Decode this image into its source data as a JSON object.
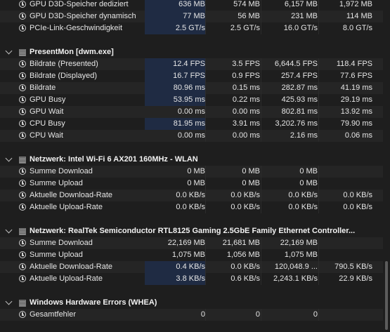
{
  "rows": [
    {
      "type": "item",
      "name": "GPU D3D-Speicher dediziert",
      "c1": "636 MB",
      "c2": "574 MB",
      "c3": "6,157 MB",
      "c4": "1,972 MB",
      "hi": true
    },
    {
      "type": "item",
      "name": "GPU D3D-Speicher dynamisch",
      "c1": "77 MB",
      "c2": "56 MB",
      "c3": "231 MB",
      "c4": "114 MB",
      "hi": true
    },
    {
      "type": "item",
      "name": "PCIe-Link-Geschwindigkeit",
      "c1": "2.5 GT/s",
      "c2": "2.5 GT/s",
      "c3": "16.0 GT/s",
      "c4": "8.0 GT/s",
      "hi": true
    },
    {
      "type": "blank"
    },
    {
      "type": "header",
      "name": "PresentMon [dwm.exe]"
    },
    {
      "type": "item",
      "name": "Bildrate (Presented)",
      "c1": "12.4 FPS",
      "c2": "3.5 FPS",
      "c3": "6,644.5 FPS",
      "c4": "118.4 FPS",
      "hi": true
    },
    {
      "type": "item",
      "name": "Bildrate (Displayed)",
      "c1": "16.7 FPS",
      "c2": "0.9 FPS",
      "c3": "257.4 FPS",
      "c4": "77.6 FPS",
      "hi": true
    },
    {
      "type": "item",
      "name": "Bildrate",
      "c1": "80.96 ms",
      "c2": "0.15 ms",
      "c3": "282.87 ms",
      "c4": "41.19 ms",
      "hi": true
    },
    {
      "type": "item",
      "name": "GPU Busy",
      "c1": "53.95 ms",
      "c2": "0.22 ms",
      "c3": "425.93 ms",
      "c4": "29.19 ms",
      "hi": true
    },
    {
      "type": "item",
      "name": "GPU Wait",
      "c1": "0.00 ms",
      "c2": "0.00 ms",
      "c3": "802.81 ms",
      "c4": "13.92 ms",
      "hi": false
    },
    {
      "type": "item",
      "name": "CPU Busy",
      "c1": "81.95 ms",
      "c2": "3.91 ms",
      "c3": "3,202.76 ms",
      "c4": "79.90 ms",
      "hi": true
    },
    {
      "type": "item",
      "name": "CPU Wait",
      "c1": "0.00 ms",
      "c2": "0.00 ms",
      "c3": "2.16 ms",
      "c4": "0.06 ms",
      "hi": false
    },
    {
      "type": "blank"
    },
    {
      "type": "header",
      "name": "Netzwerk: Intel Wi-Fi 6 AX201 160MHz - WLAN"
    },
    {
      "type": "item",
      "name": "Summe Download",
      "c1": "0 MB",
      "c2": "0 MB",
      "c3": "0 MB",
      "c4": "",
      "hi": false
    },
    {
      "type": "item",
      "name": "Summe Upload",
      "c1": "0 MB",
      "c2": "0 MB",
      "c3": "0 MB",
      "c4": "",
      "hi": false
    },
    {
      "type": "item",
      "name": "Aktuelle Download-Rate",
      "c1": "0.0 KB/s",
      "c2": "0.0 KB/s",
      "c3": "0.0 KB/s",
      "c4": "0.0 KB/s",
      "hi": false
    },
    {
      "type": "item",
      "name": "Aktuelle Upload-Rate",
      "c1": "0.0 KB/s",
      "c2": "0.0 KB/s",
      "c3": "0.0 KB/s",
      "c4": "0.0 KB/s",
      "hi": false
    },
    {
      "type": "blank"
    },
    {
      "type": "header",
      "name": "Netzwerk: RealTek Semiconductor RTL8125 Gaming 2.5GbE Family Ethernet Controller..."
    },
    {
      "type": "item",
      "name": "Summe Download",
      "c1": "22,169 MB",
      "c2": "21,681 MB",
      "c3": "22,169 MB",
      "c4": "",
      "hi": false
    },
    {
      "type": "item",
      "name": "Summe Upload",
      "c1": "1,075 MB",
      "c2": "1,056 MB",
      "c3": "1,075 MB",
      "c4": "",
      "hi": false
    },
    {
      "type": "item",
      "name": "Aktuelle Download-Rate",
      "c1": "0.4 KB/s",
      "c2": "0.0 KB/s",
      "c3": "120,048.9 ...",
      "c4": "790.5 KB/s",
      "hi": true
    },
    {
      "type": "item",
      "name": "Aktuelle Upload-Rate",
      "c1": "3.8 KB/s",
      "c2": "0.6 KB/s",
      "c3": "2,243.1 KB/s",
      "c4": "22.9 KB/s",
      "hi": true
    },
    {
      "type": "blank"
    },
    {
      "type": "header",
      "name": "Windows Hardware Errors (WHEA)"
    },
    {
      "type": "item",
      "name": "Gesamtfehler",
      "c1": "0",
      "c2": "0",
      "c3": "0",
      "c4": "",
      "hi": false
    }
  ]
}
